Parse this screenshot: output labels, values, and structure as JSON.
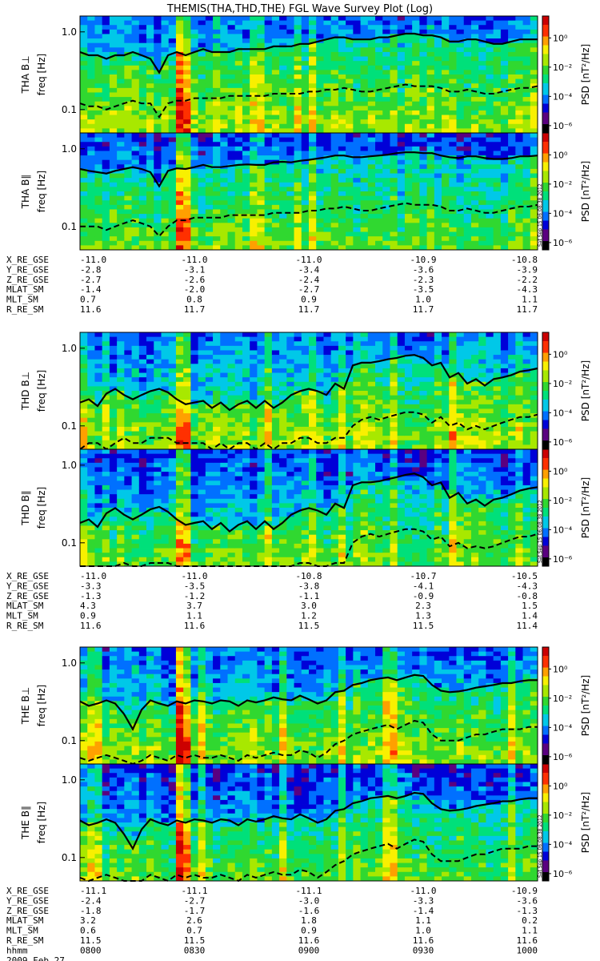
{
  "chart_data": {
    "type": "heatmap",
    "title": "THEMIS(THA,THD,THE) FGL Wave Survey Plot (Log)",
    "stamp": "Sat Sep 15 06:08:38 2012",
    "freq_axis": {
      "label": "freq [Hz]",
      "scale": "log",
      "range": [
        0.05,
        1.6
      ],
      "ticks": [
        "1.0",
        "0.1"
      ]
    },
    "colorbar": {
      "label": "PSD [nT²/Hz]",
      "scale": "log",
      "range_exp": [
        -6.5,
        1.5
      ],
      "ticks": [
        "10⁰",
        "10⁻²",
        "10⁻⁴",
        "10⁻⁶"
      ]
    },
    "colormap": [
      "#000000",
      "#5a0080",
      "#0000d8",
      "#0070ff",
      "#00c8e8",
      "#00e07a",
      "#30d830",
      "#a8e800",
      "#f8f000",
      "#ffa000",
      "#ff3000",
      "#cc0000"
    ],
    "groups": [
      {
        "probe": "THA",
        "panels": [
          {
            "ylabel": "THA B⊥",
            "cblabel": "PSD [nT²/Hz]",
            "solid": [
              0.55,
              0.5,
              0.5,
              0.45,
              0.5,
              0.5,
              0.55,
              0.5,
              0.45,
              0.3,
              0.5,
              0.55,
              0.5,
              0.55,
              0.6,
              0.55,
              0.55,
              0.55,
              0.6,
              0.6,
              0.6,
              0.6,
              0.65,
              0.65,
              0.65,
              0.7,
              0.7,
              0.75,
              0.8,
              0.85,
              0.85,
              0.8,
              0.8,
              0.8,
              0.85,
              0.85,
              0.9,
              0.95,
              0.95,
              0.9,
              0.9,
              0.85,
              0.75,
              0.75,
              0.8,
              0.8,
              0.75,
              0.7,
              0.7,
              0.75,
              0.8,
              0.8,
              0.8
            ],
            "dashed": [
              0.12,
              0.11,
              0.11,
              0.1,
              0.11,
              0.12,
              0.13,
              0.12,
              0.12,
              0.08,
              0.12,
              0.13,
              0.13,
              0.14,
              0.14,
              0.14,
              0.14,
              0.15,
              0.15,
              0.15,
              0.15,
              0.15,
              0.16,
              0.16,
              0.16,
              0.16,
              0.17,
              0.17,
              0.18,
              0.18,
              0.19,
              0.18,
              0.17,
              0.17,
              0.18,
              0.19,
              0.2,
              0.21,
              0.2,
              0.2,
              0.2,
              0.19,
              0.17,
              0.17,
              0.18,
              0.17,
              0.16,
              0.16,
              0.17,
              0.18,
              0.19,
              0.19,
              0.2
            ]
          },
          {
            "ylabel": "THA B∥",
            "cblabel": "PSD [nT²/Hz]",
            "solid": [
              0.55,
              0.52,
              0.5,
              0.48,
              0.52,
              0.55,
              0.58,
              0.55,
              0.5,
              0.33,
              0.52,
              0.56,
              0.55,
              0.58,
              0.62,
              0.58,
              0.58,
              0.6,
              0.62,
              0.63,
              0.62,
              0.62,
              0.67,
              0.68,
              0.67,
              0.7,
              0.72,
              0.75,
              0.78,
              0.82,
              0.82,
              0.78,
              0.78,
              0.8,
              0.82,
              0.84,
              0.88,
              0.9,
              0.9,
              0.88,
              0.88,
              0.82,
              0.78,
              0.76,
              0.8,
              0.8,
              0.76,
              0.74,
              0.74,
              0.76,
              0.8,
              0.8,
              0.82
            ],
            "dashed": [
              0.1,
              0.1,
              0.1,
              0.09,
              0.1,
              0.11,
              0.12,
              0.11,
              0.1,
              0.075,
              0.1,
              0.12,
              0.12,
              0.13,
              0.13,
              0.13,
              0.13,
              0.14,
              0.14,
              0.14,
              0.14,
              0.14,
              0.15,
              0.15,
              0.15,
              0.15,
              0.16,
              0.16,
              0.17,
              0.17,
              0.18,
              0.17,
              0.16,
              0.16,
              0.17,
              0.18,
              0.19,
              0.2,
              0.19,
              0.19,
              0.19,
              0.18,
              0.16,
              0.16,
              0.17,
              0.16,
              0.15,
              0.15,
              0.16,
              0.17,
              0.18,
              0.18,
              0.19
            ]
          }
        ],
        "ephem": [
          {
            "name": "X_RE_GSE",
            "values": [
              "-11.0",
              "-11.0",
              "-11.0",
              "-10.9",
              "-10.8"
            ]
          },
          {
            "name": "Y_RE_GSE",
            "values": [
              "-2.8",
              "-3.1",
              "-3.4",
              "-3.6",
              "-3.9"
            ]
          },
          {
            "name": "Z_RE_GSE",
            "values": [
              "-2.7",
              "-2.6",
              "-2.4",
              "-2.3",
              "-2.2"
            ]
          },
          {
            "name": "MLAT_SM",
            "values": [
              "-1.4",
              "-2.0",
              "-2.7",
              "-3.5",
              "-4.3"
            ]
          },
          {
            "name": "MLT_SM",
            "values": [
              "0.7",
              "0.8",
              "0.9",
              "1.0",
              "1.1"
            ]
          },
          {
            "name": "R_RE_SM",
            "values": [
              "11.6",
              "11.7",
              "11.7",
              "11.7",
              "11.7"
            ]
          }
        ]
      },
      {
        "probe": "THD",
        "panels": [
          {
            "ylabel": "THD B⊥",
            "cblabel": "PSD [nT²/Hz]",
            "solid": [
              0.2,
              0.22,
              0.18,
              0.26,
              0.3,
              0.25,
              0.22,
              0.25,
              0.28,
              0.3,
              0.27,
              0.22,
              0.19,
              0.2,
              0.21,
              0.17,
              0.2,
              0.16,
              0.19,
              0.21,
              0.17,
              0.21,
              0.17,
              0.2,
              0.25,
              0.28,
              0.3,
              0.28,
              0.25,
              0.35,
              0.3,
              0.6,
              0.65,
              0.65,
              0.68,
              0.72,
              0.75,
              0.8,
              0.82,
              0.75,
              0.6,
              0.65,
              0.42,
              0.48,
              0.35,
              0.4,
              0.33,
              0.4,
              0.42,
              0.45,
              0.5,
              0.52,
              0.55
            ],
            "dashed": [
              0.05,
              0.06,
              0.06,
              0.05,
              0.06,
              0.07,
              0.06,
              0.06,
              0.07,
              0.07,
              0.07,
              0.06,
              0.06,
              0.06,
              0.06,
              0.05,
              0.06,
              0.05,
              0.06,
              0.06,
              0.05,
              0.06,
              0.05,
              0.06,
              0.06,
              0.07,
              0.07,
              0.06,
              0.06,
              0.07,
              0.07,
              0.1,
              0.12,
              0.13,
              0.12,
              0.13,
              0.14,
              0.15,
              0.15,
              0.14,
              0.11,
              0.13,
              0.1,
              0.11,
              0.09,
              0.1,
              0.09,
              0.1,
              0.11,
              0.12,
              0.13,
              0.13,
              0.14
            ]
          },
          {
            "ylabel": "THD B∥",
            "cblabel": "PSD [nT²/Hz]",
            "solid": [
              0.18,
              0.2,
              0.16,
              0.24,
              0.28,
              0.23,
              0.2,
              0.23,
              0.27,
              0.29,
              0.25,
              0.2,
              0.17,
              0.18,
              0.19,
              0.15,
              0.18,
              0.14,
              0.17,
              0.19,
              0.15,
              0.19,
              0.15,
              0.18,
              0.23,
              0.26,
              0.28,
              0.26,
              0.23,
              0.32,
              0.28,
              0.55,
              0.6,
              0.6,
              0.62,
              0.66,
              0.7,
              0.75,
              0.78,
              0.7,
              0.55,
              0.6,
              0.38,
              0.44,
              0.32,
              0.36,
              0.3,
              0.36,
              0.38,
              0.42,
              0.47,
              0.5,
              0.52
            ],
            "dashed": [
              0.045,
              0.05,
              0.05,
              0.045,
              0.05,
              0.055,
              0.05,
              0.05,
              0.055,
              0.055,
              0.055,
              0.05,
              0.05,
              0.05,
              0.05,
              0.045,
              0.05,
              0.045,
              0.05,
              0.05,
              0.045,
              0.05,
              0.045,
              0.05,
              0.05,
              0.055,
              0.055,
              0.05,
              0.05,
              0.055,
              0.055,
              0.1,
              0.12,
              0.13,
              0.12,
              0.13,
              0.14,
              0.15,
              0.15,
              0.14,
              0.11,
              0.12,
              0.09,
              0.1,
              0.085,
              0.09,
              0.085,
              0.09,
              0.1,
              0.11,
              0.12,
              0.12,
              0.13
            ]
          }
        ],
        "ephem": [
          {
            "name": "X_RE_GSE",
            "values": [
              "-11.0",
              "-11.0",
              "-10.8",
              "-10.7",
              "-10.5"
            ]
          },
          {
            "name": "Y_RE_GSE",
            "values": [
              "-3.3",
              "-3.5",
              "-3.8",
              "-4.1",
              "-4.3"
            ]
          },
          {
            "name": "Z_RE_GSE",
            "values": [
              "-1.3",
              "-1.2",
              "-1.1",
              "-0.9",
              "-0.8"
            ]
          },
          {
            "name": "MLAT_SM",
            "values": [
              "4.3",
              "3.7",
              "3.0",
              "2.3",
              "1.5"
            ]
          },
          {
            "name": "MLT_SM",
            "values": [
              "0.9",
              "1.1",
              "1.2",
              "1.3",
              "1.4"
            ]
          },
          {
            "name": "R_RE_SM",
            "values": [
              "11.6",
              "11.6",
              "11.5",
              "11.5",
              "11.4"
            ]
          }
        ]
      },
      {
        "probe": "THE",
        "panels": [
          {
            "ylabel": "THE B⊥",
            "cblabel": "PSD [nT²/Hz]",
            "solid": [
              0.32,
              0.28,
              0.3,
              0.33,
              0.3,
              0.22,
              0.14,
              0.25,
              0.33,
              0.3,
              0.28,
              0.32,
              0.3,
              0.33,
              0.32,
              0.3,
              0.33,
              0.32,
              0.28,
              0.33,
              0.31,
              0.33,
              0.36,
              0.34,
              0.33,
              0.38,
              0.34,
              0.3,
              0.33,
              0.42,
              0.44,
              0.52,
              0.55,
              0.6,
              0.63,
              0.65,
              0.6,
              0.65,
              0.7,
              0.68,
              0.52,
              0.44,
              0.42,
              0.43,
              0.45,
              0.48,
              0.5,
              0.52,
              0.55,
              0.55,
              0.58,
              0.6,
              0.6
            ],
            "dashed": [
              0.06,
              0.055,
              0.06,
              0.065,
              0.06,
              0.055,
              0.05,
              0.055,
              0.065,
              0.06,
              0.055,
              0.065,
              0.06,
              0.065,
              0.06,
              0.06,
              0.065,
              0.06,
              0.055,
              0.065,
              0.06,
              0.065,
              0.07,
              0.065,
              0.065,
              0.075,
              0.07,
              0.06,
              0.07,
              0.09,
              0.1,
              0.12,
              0.13,
              0.14,
              0.15,
              0.16,
              0.14,
              0.16,
              0.18,
              0.17,
              0.12,
              0.1,
              0.1,
              0.1,
              0.11,
              0.12,
              0.12,
              0.13,
              0.14,
              0.14,
              0.14,
              0.15,
              0.15
            ]
          },
          {
            "ylabel": "THE B∥",
            "cblabel": "PSD [nT²/Hz]",
            "solid": [
              0.3,
              0.26,
              0.28,
              0.31,
              0.28,
              0.2,
              0.13,
              0.23,
              0.31,
              0.28,
              0.26,
              0.3,
              0.28,
              0.31,
              0.3,
              0.28,
              0.31,
              0.3,
              0.26,
              0.31,
              0.29,
              0.31,
              0.34,
              0.32,
              0.31,
              0.36,
              0.32,
              0.28,
              0.31,
              0.4,
              0.42,
              0.5,
              0.53,
              0.58,
              0.6,
              0.62,
              0.58,
              0.62,
              0.68,
              0.66,
              0.5,
              0.42,
              0.4,
              0.41,
              0.43,
              0.46,
              0.48,
              0.5,
              0.53,
              0.53,
              0.56,
              0.58,
              0.58
            ],
            "dashed": [
              0.055,
              0.05,
              0.055,
              0.06,
              0.055,
              0.05,
              0.045,
              0.05,
              0.06,
              0.055,
              0.05,
              0.06,
              0.055,
              0.06,
              0.055,
              0.055,
              0.06,
              0.055,
              0.05,
              0.06,
              0.055,
              0.06,
              0.065,
              0.06,
              0.06,
              0.07,
              0.065,
              0.055,
              0.065,
              0.08,
              0.09,
              0.11,
              0.12,
              0.13,
              0.14,
              0.15,
              0.13,
              0.15,
              0.17,
              0.16,
              0.11,
              0.09,
              0.09,
              0.09,
              0.1,
              0.11,
              0.11,
              0.12,
              0.13,
              0.13,
              0.13,
              0.14,
              0.14
            ]
          }
        ],
        "ephem": [
          {
            "name": "X_RE_GSE",
            "values": [
              "-11.1",
              "-11.1",
              "-11.1",
              "-11.0",
              "-10.9"
            ]
          },
          {
            "name": "Y_RE_GSE",
            "values": [
              "-2.4",
              "-2.7",
              "-3.0",
              "-3.3",
              "-3.6"
            ]
          },
          {
            "name": "Z_RE_GSE",
            "values": [
              "-1.8",
              "-1.7",
              "-1.6",
              "-1.4",
              "-1.3"
            ]
          },
          {
            "name": "MLAT_SM",
            "values": [
              "3.2",
              "2.6",
              "1.8",
              "1.1",
              "0.2"
            ]
          },
          {
            "name": "MLT_SM",
            "values": [
              "0.6",
              "0.7",
              "0.9",
              "1.0",
              "1.1"
            ]
          },
          {
            "name": "R_RE_SM",
            "values": [
              "11.5",
              "11.5",
              "11.6",
              "11.6",
              "11.6"
            ]
          },
          {
            "name": "hhmm",
            "values": [
              "0800",
              "0830",
              "0900",
              "0930",
              "1000"
            ]
          }
        ],
        "date": "2009 Feb 27"
      }
    ]
  }
}
